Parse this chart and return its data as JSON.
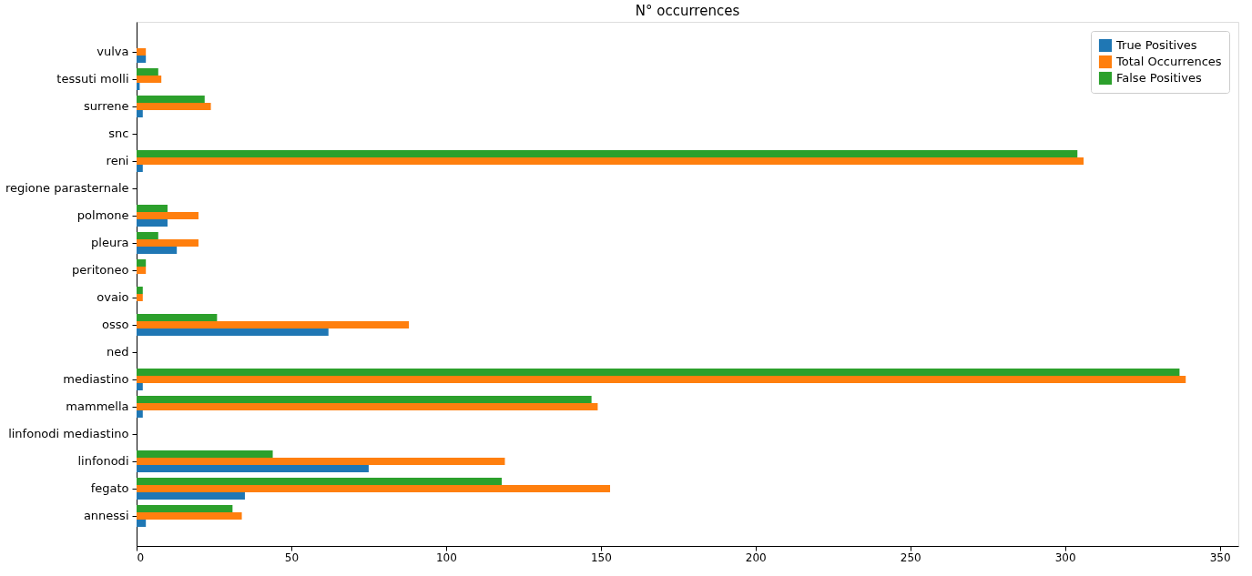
{
  "chart_data": {
    "type": "bar",
    "orientation": "horizontal",
    "title": "N° occurrences",
    "categories": [
      "vulva",
      "tessuti molli",
      "surrene",
      "snc",
      "reni",
      "regione parasternale",
      "polmone",
      "pleura",
      "peritoneo",
      "ovaio",
      "osso",
      "ned",
      "mediastino",
      "mammella",
      "linfonodi mediastino",
      "linfonodi",
      "fegato",
      "annessi"
    ],
    "series": [
      {
        "name": "True Positives",
        "color": "#1f77b4",
        "values": [
          3,
          1,
          2,
          0,
          2,
          0,
          10,
          13,
          0,
          0,
          62,
          0,
          2,
          2,
          0,
          75,
          35,
          3
        ]
      },
      {
        "name": "Total Occurrences",
        "color": "#ff7f0e",
        "values": [
          3,
          8,
          24,
          0,
          306,
          0,
          20,
          20,
          3,
          2,
          88,
          0,
          339,
          149,
          0,
          119,
          153,
          34
        ]
      },
      {
        "name": "False Positives",
        "color": "#2ca02c",
        "values": [
          0,
          7,
          22,
          0,
          304,
          0,
          10,
          7,
          3,
          2,
          26,
          0,
          337,
          147,
          0,
          44,
          118,
          31
        ]
      }
    ],
    "xlim": [
      0,
      356
    ],
    "xticks": [
      0,
      50,
      100,
      150,
      200,
      250,
      300,
      350
    ],
    "legend": "top right",
    "grid": false
  }
}
